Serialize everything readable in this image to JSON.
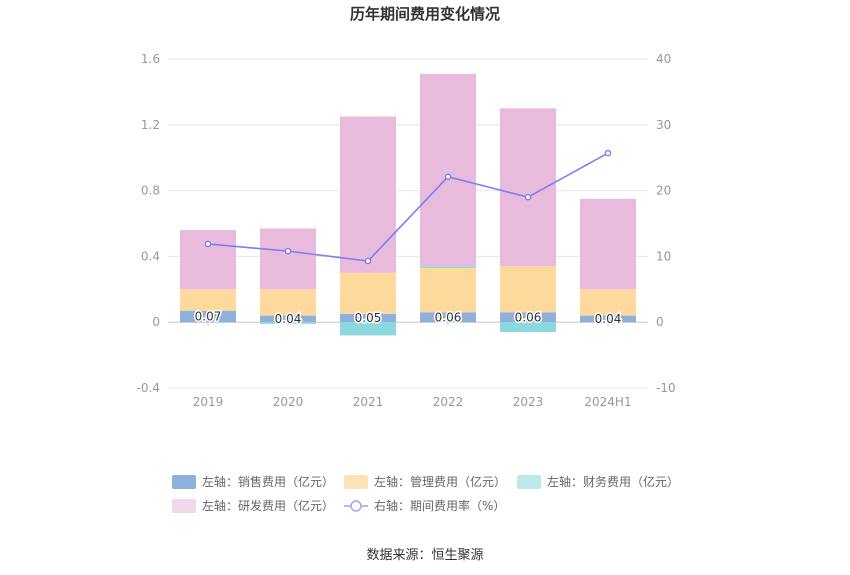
{
  "title": "历年期间费用变化情况",
  "source": "数据来源：恒生聚源",
  "chart_data": {
    "type": "bar",
    "categories": [
      "2019",
      "2020",
      "2021",
      "2022",
      "2023",
      "2024H1"
    ],
    "left_axis": {
      "ylim": [
        -0.4,
        1.6
      ],
      "ticks": [
        "-0.4",
        "0",
        "0.4",
        "0.8",
        "1.2",
        "1.6"
      ]
    },
    "right_axis": {
      "ylim": [
        -10,
        40
      ],
      "ticks": [
        "-10",
        "0",
        "10",
        "20",
        "30",
        "40"
      ]
    },
    "series": [
      {
        "name": "左轴：销售费用（亿元）",
        "type": "bar",
        "axis": "left",
        "color": "#8db0dd",
        "values": [
          0.07,
          0.04,
          0.05,
          0.06,
          0.06,
          0.04
        ],
        "labels": [
          "0.07",
          "0.04",
          "0.05",
          "0.06",
          "0.06",
          "0.04"
        ]
      },
      {
        "name": "左轴：管理费用（亿元）",
        "type": "bar",
        "axis": "left",
        "color": "#fdd99c",
        "values": [
          0.13,
          0.16,
          0.25,
          0.27,
          0.28,
          0.16
        ]
      },
      {
        "name": "左轴：财务费用（亿元）",
        "type": "bar",
        "axis": "left",
        "color": "#8dd8dc",
        "values": [
          0.0,
          -0.01,
          -0.08,
          0.01,
          -0.06,
          0.0
        ]
      },
      {
        "name": "左轴：研发费用（亿元）",
        "type": "bar",
        "axis": "left",
        "color": "#e8bbdc",
        "values": [
          0.36,
          0.37,
          0.95,
          1.17,
          0.96,
          0.55
        ]
      },
      {
        "name": "右轴：期间费用率（%）",
        "type": "line",
        "axis": "right",
        "color": "#7b7ff0",
        "values": [
          11.9,
          10.8,
          9.3,
          22.1,
          19.0,
          25.7
        ]
      }
    ]
  },
  "legend": [
    {
      "label": "左轴：销售费用（亿元）",
      "kind": "rect",
      "color": "#8db0dd"
    },
    {
      "label": "左轴：管理费用（亿元）",
      "kind": "rect",
      "color": "#fde3b8"
    },
    {
      "label": "左轴：财务费用（亿元）",
      "kind": "rect",
      "color": "#bfe8e9"
    },
    {
      "label": "左轴：研发费用（亿元）",
      "kind": "rect",
      "color": "#f1d8ec"
    },
    {
      "label": "右轴：期间费用率（%）",
      "kind": "line",
      "color": "#9fa2f3"
    }
  ]
}
